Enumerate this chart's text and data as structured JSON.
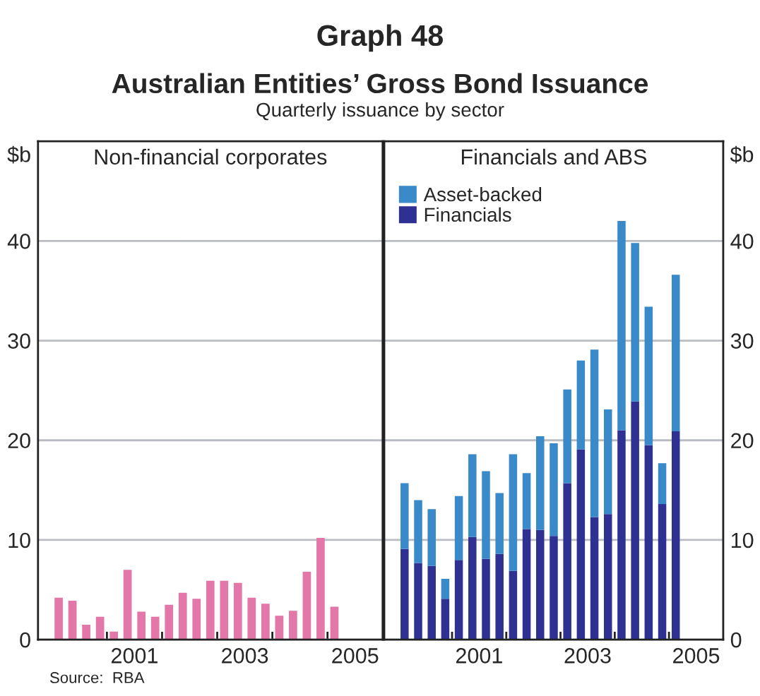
{
  "chart_data": [
    {
      "type": "bar",
      "title": "Non-financial corporates",
      "ylabel": "$b",
      "annotations": [
        "Graph 48",
        "Australian Entities’ Gross Bond Issuance",
        "Quarterly issuance by sector",
        "Source:  RBA"
      ],
      "x": [
        2000.125,
        2000.375,
        2000.625,
        2000.875,
        2001.125,
        2001.375,
        2001.625,
        2001.875,
        2002.125,
        2002.375,
        2002.625,
        2002.875,
        2003.125,
        2003.375,
        2003.625,
        2003.875,
        2004.125,
        2004.375,
        2004.625,
        2004.875,
        2005.125
      ],
      "series": [
        {
          "color": "#e377a8",
          "values": [
            4.2,
            3.9,
            1.5,
            2.3,
            0.8,
            7.0,
            2.8,
            2.3,
            3.5,
            4.7,
            4.1,
            5.9,
            5.9,
            5.7,
            4.2,
            3.6,
            2.4,
            2.9,
            6.8,
            10.2,
            3.3
          ]
        }
      ],
      "xlim": [
        1999.75,
        2006
      ],
      "xticks": [
        {
          "value": 2001,
          "label": null
        },
        {
          "value": 2002,
          "label": null
        },
        {
          "value": 2003,
          "label": null
        },
        {
          "value": 2004,
          "label": null
        },
        {
          "value": 2005,
          "label": null
        },
        {
          "value": 2001.5,
          "label": "2001"
        },
        {
          "value": 2003.5,
          "label": "2003"
        },
        {
          "value": 2005.5,
          "label": "2005"
        }
      ],
      "ylim": [
        0,
        50
      ],
      "yticks": [
        0,
        10,
        20,
        30,
        40
      ],
      "grid": "y",
      "legend": false
    },
    {
      "type": "bar",
      "title": "Financials and ABS",
      "ylabel": "$b",
      "stacked": true,
      "x": [
        2000.125,
        2000.375,
        2000.625,
        2000.875,
        2001.125,
        2001.375,
        2001.625,
        2001.875,
        2002.125,
        2002.375,
        2002.625,
        2002.875,
        2003.125,
        2003.375,
        2003.625,
        2003.875,
        2004.125,
        2004.375,
        2004.625,
        2004.875,
        2005.125
      ],
      "series": [
        {
          "name": "Financials",
          "color": "#2e3192",
          "values": [
            9.1,
            7.7,
            7.4,
            4.1,
            8.0,
            10.3,
            8.1,
            8.6,
            6.9,
            11.1,
            11.0,
            10.4,
            15.7,
            19.1,
            12.3,
            12.6,
            21.0,
            23.9,
            19.5,
            13.6,
            20.9
          ]
        },
        {
          "name": "Asset-backed",
          "color": "#3a89c9",
          "values": [
            6.6,
            6.3,
            5.7,
            2.0,
            6.4,
            8.3,
            8.8,
            6.1,
            11.7,
            5.6,
            9.4,
            9.3,
            9.4,
            8.9,
            16.8,
            10.5,
            21.0,
            15.9,
            13.9,
            4.1,
            15.7
          ]
        }
      ],
      "xlim": [
        1999.75,
        2006
      ],
      "xticks": [
        {
          "value": 2001,
          "label": null
        },
        {
          "value": 2002,
          "label": null
        },
        {
          "value": 2003,
          "label": null
        },
        {
          "value": 2004,
          "label": null
        },
        {
          "value": 2005,
          "label": null
        },
        {
          "value": 2001.5,
          "label": "2001"
        },
        {
          "value": 2003.5,
          "label": "2003"
        },
        {
          "value": 2005.5,
          "label": "2005"
        }
      ],
      "ylim": [
        0,
        50
      ],
      "yticks": [
        0,
        10,
        20,
        30,
        40
      ],
      "grid": "y",
      "legend": "top left"
    }
  ]
}
